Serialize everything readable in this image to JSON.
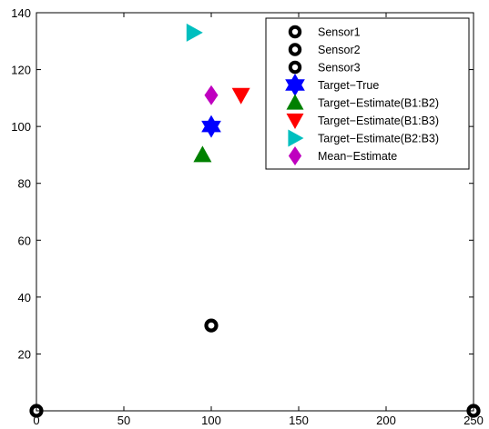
{
  "chart_data": {
    "type": "scatter",
    "title": "",
    "xlabel": "",
    "ylabel": "",
    "xlim": [
      0,
      250
    ],
    "ylim": [
      0,
      140
    ],
    "xticks": [
      0,
      50,
      100,
      150,
      200,
      250
    ],
    "yticks": [
      20,
      40,
      60,
      80,
      100,
      120,
      140
    ],
    "grid": false,
    "legend_position": "top-right",
    "series": [
      {
        "name": "Sensor1",
        "marker": "ring",
        "color": "#000000",
        "x": [
          0
        ],
        "y": [
          0
        ]
      },
      {
        "name": "Sensor2",
        "marker": "ring",
        "color": "#000000",
        "x": [
          250
        ],
        "y": [
          0
        ]
      },
      {
        "name": "Sensor3",
        "marker": "ring",
        "color": "#000000",
        "x": [
          100
        ],
        "y": [
          30
        ]
      },
      {
        "name": "Target−True",
        "marker": "hexagram",
        "color": "#0000ff",
        "x": [
          100
        ],
        "y": [
          100
        ]
      },
      {
        "name": "Target−Estimate(B1:B2)",
        "marker": "triangle-up",
        "color": "#008000",
        "x": [
          95
        ],
        "y": [
          90
        ]
      },
      {
        "name": "Target−Estimate(B1:B3)",
        "marker": "triangle-down",
        "color": "#ff0000",
        "x": [
          117
        ],
        "y": [
          111
        ]
      },
      {
        "name": "Target−Estimate(B2:B3)",
        "marker": "triangle-right",
        "color": "#00bfbf",
        "x": [
          90
        ],
        "y": [
          133
        ]
      },
      {
        "name": "Mean−Estimate",
        "marker": "diamond",
        "color": "#bf00bf",
        "x": [
          100
        ],
        "y": [
          111
        ]
      }
    ]
  }
}
